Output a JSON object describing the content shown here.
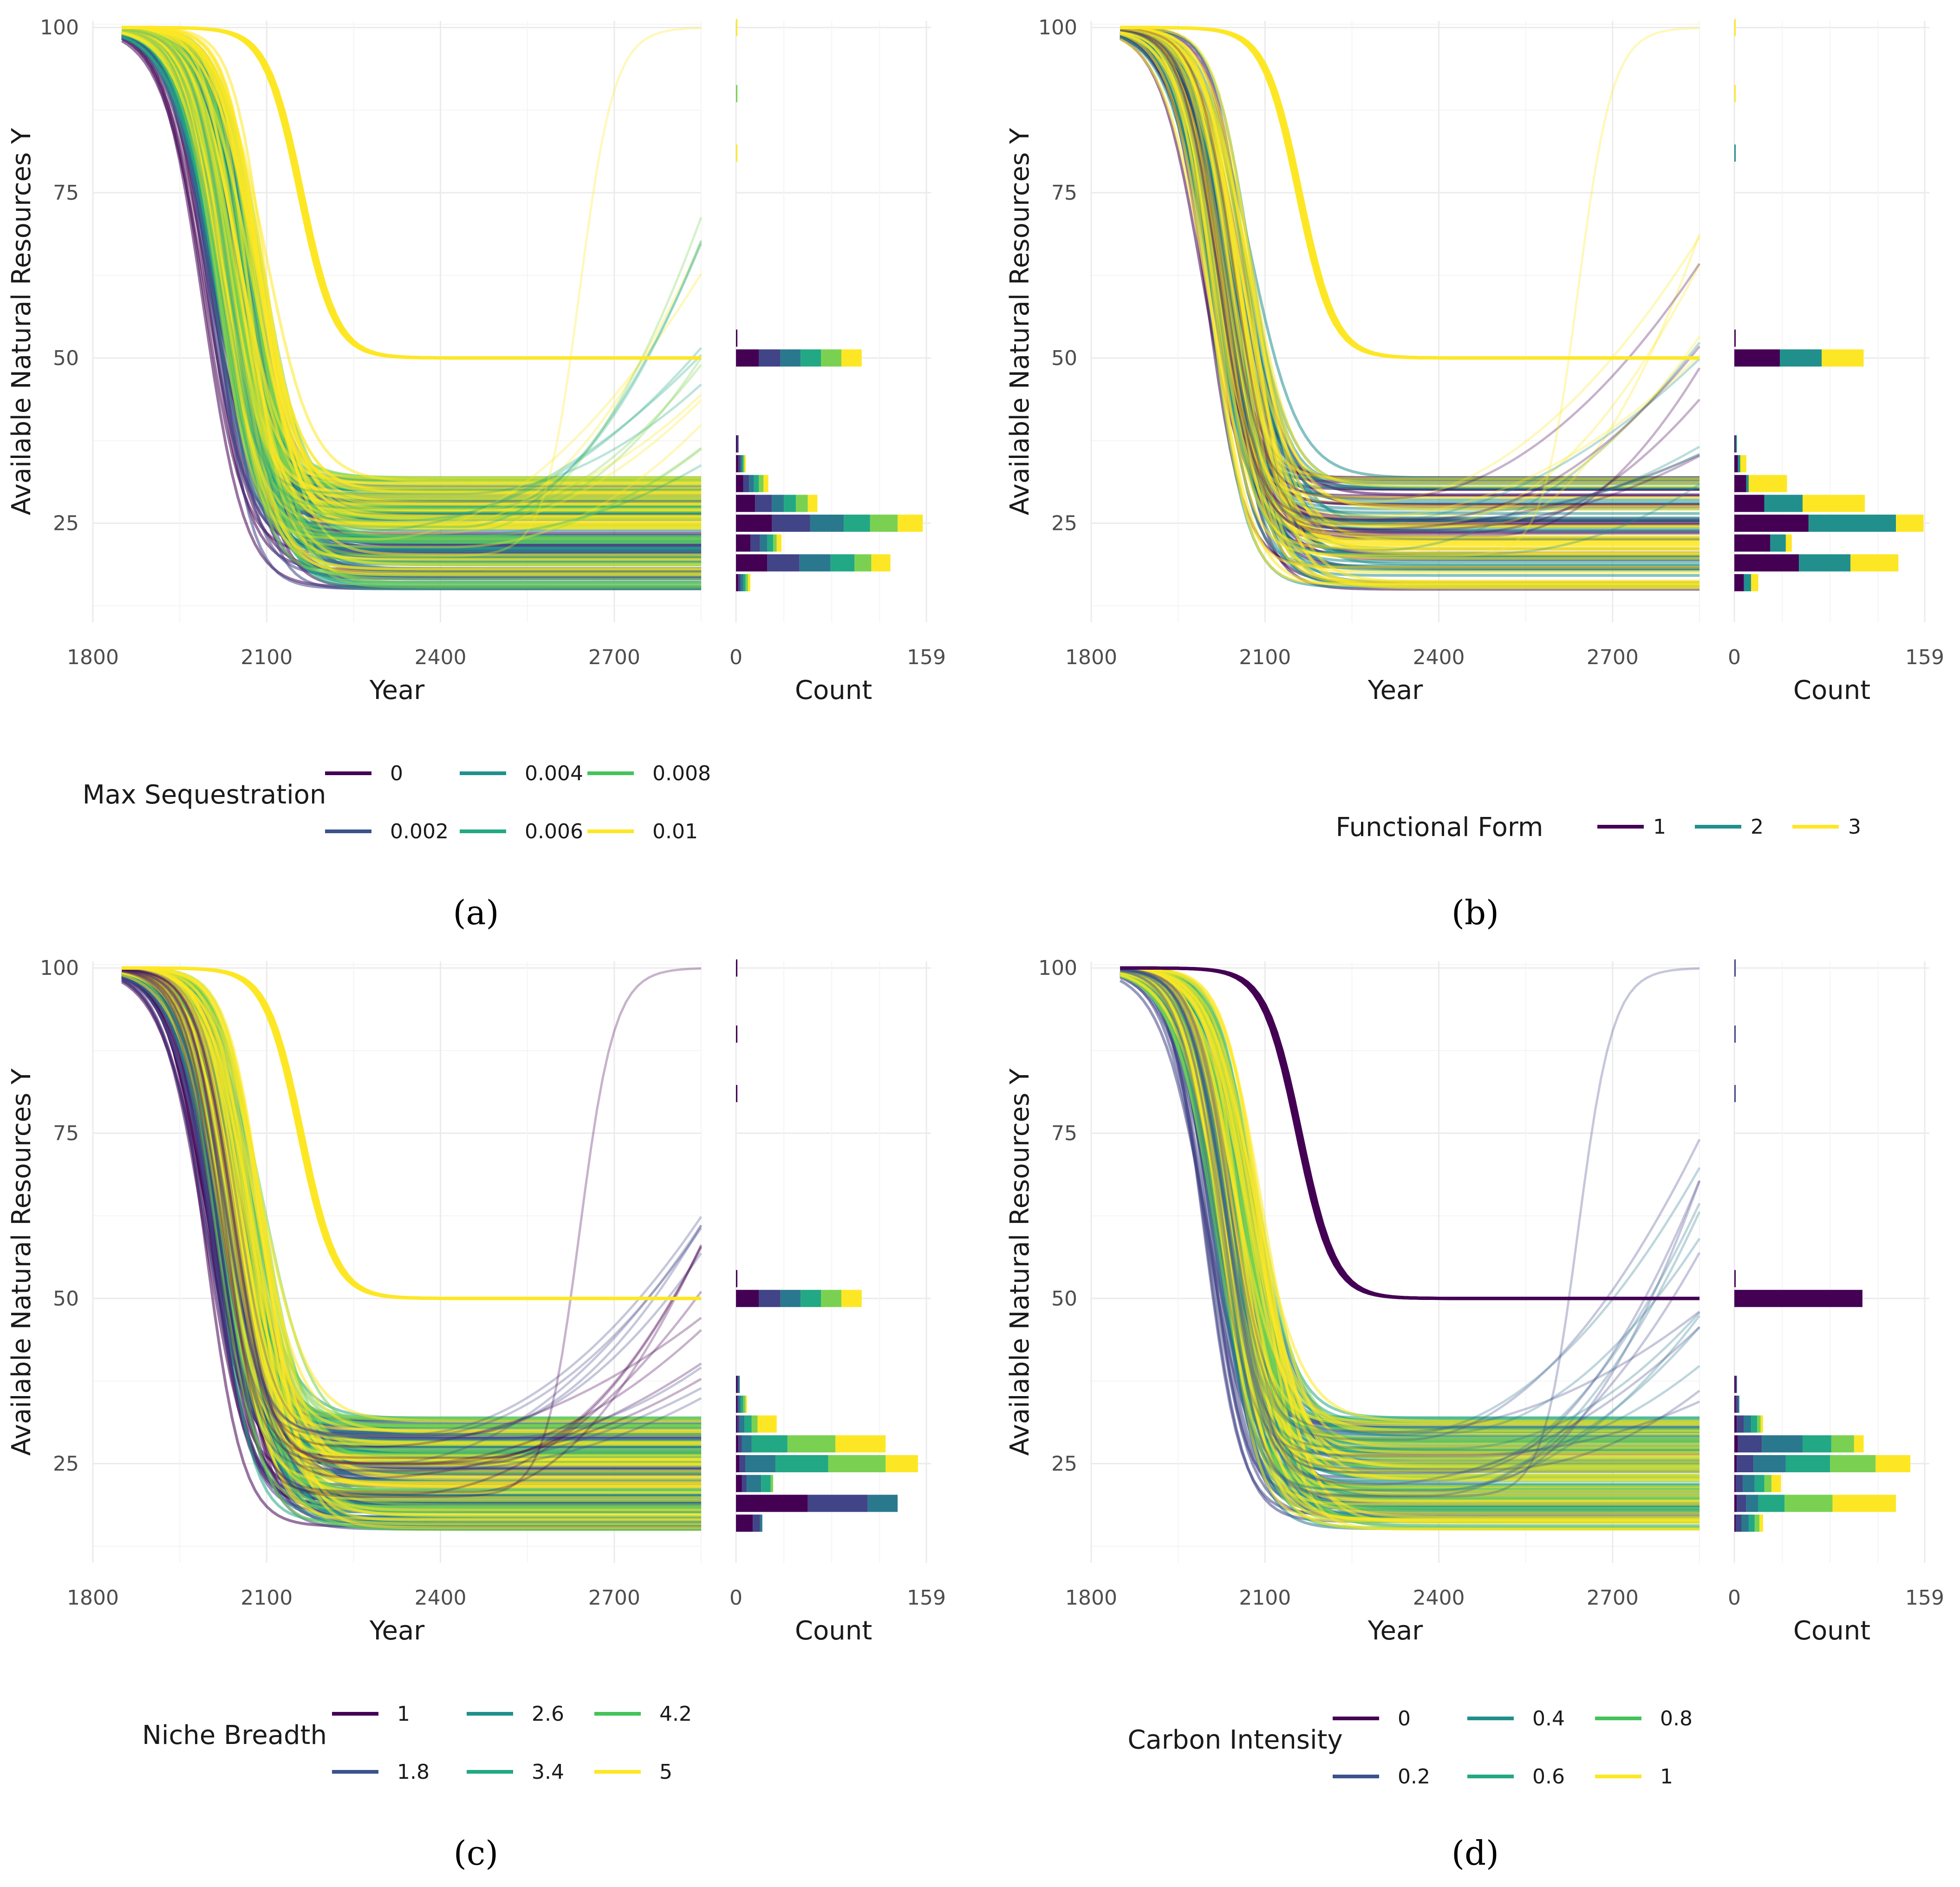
{
  "colors": {
    "viridis6": [
      "#440154",
      "#414487",
      "#2A788E",
      "#22A884",
      "#7AD151",
      "#FDE725"
    ],
    "viridis6_legend": [
      "#440154",
      "#3B528B",
      "#21908C",
      "#22A884",
      "#44C35A",
      "#FDE725"
    ],
    "viridis3": [
      "#440154",
      "#21908C",
      "#FDE725"
    ]
  },
  "chart_data": [
    {
      "panel": "a",
      "caption": "(a)",
      "type": "line",
      "xlabel": "Year",
      "ylabel": "Available Natural Resources Y",
      "xlim": [
        1800,
        2850
      ],
      "xticks": [
        "1800",
        "2100",
        "2400",
        "2700"
      ],
      "xtick_values": [
        1800,
        2100,
        2400,
        2700
      ],
      "ylim": [
        10,
        101
      ],
      "yticks": [
        "25",
        "50",
        "75",
        "100"
      ],
      "ytick_values": [
        25,
        50,
        75,
        100
      ],
      "hist_xlabel": "Count",
      "hist_xticks": [
        "0",
        "159"
      ],
      "hist_xtick_values": [
        0,
        159
      ],
      "legend_title": "Max Sequestration",
      "legend_layout": "3col",
      "legend_labels": [
        "0",
        "0.002",
        "0.004",
        "0.006",
        "0.008",
        "0.01"
      ],
      "palette": "viridis6",
      "highlight": 5,
      "stable_groups": [
        0,
        1,
        2,
        3,
        4,
        5
      ],
      "hist_bins": [
        {
          "y": 16,
          "counts": [
            2,
            2,
            2,
            2,
            2,
            2
          ]
        },
        {
          "y": 19,
          "counts": [
            26,
            27,
            26,
            20,
            14,
            16
          ]
        },
        {
          "y": 22,
          "counts": [
            12,
            8,
            6,
            5,
            3,
            4
          ]
        },
        {
          "y": 25,
          "counts": [
            30,
            32,
            28,
            22,
            23,
            21
          ]
        },
        {
          "y": 28,
          "counts": [
            16,
            14,
            10,
            10,
            10,
            8
          ]
        },
        {
          "y": 31,
          "counts": [
            6,
            5,
            4,
            4,
            4,
            4
          ]
        },
        {
          "y": 34,
          "counts": [
            2,
            2,
            1,
            1,
            1,
            1
          ]
        },
        {
          "y": 37,
          "counts": [
            1,
            1,
            0,
            0,
            0,
            0
          ]
        },
        {
          "y": 50,
          "counts": [
            19,
            18,
            17,
            17,
            17,
            17
          ]
        },
        {
          "y": 53,
          "counts": [
            1,
            0,
            0,
            0,
            0,
            0
          ]
        },
        {
          "y": 81,
          "counts": [
            0,
            0,
            0,
            0,
            0,
            1
          ]
        },
        {
          "y": 90,
          "counts": [
            0,
            0,
            0,
            0,
            1,
            0
          ]
        },
        {
          "y": 100,
          "counts": [
            0,
            0,
            0,
            0,
            0,
            1
          ]
        }
      ]
    },
    {
      "panel": "b",
      "caption": "(b)",
      "type": "line",
      "xlabel": "Year",
      "ylabel": "Available Natural Resources Y",
      "xlim": [
        1800,
        2850
      ],
      "xticks": [
        "1800",
        "2100",
        "2400",
        "2700"
      ],
      "xtick_values": [
        1800,
        2100,
        2400,
        2700
      ],
      "ylim": [
        10,
        101
      ],
      "yticks": [
        "25",
        "50",
        "75",
        "100"
      ],
      "ytick_values": [
        25,
        50,
        75,
        100
      ],
      "hist_xlabel": "Count",
      "hist_xticks": [
        "0",
        "159"
      ],
      "hist_xtick_values": [
        0,
        159
      ],
      "legend_title": "Functional Form",
      "legend_layout": "row",
      "legend_labels": [
        "1",
        "2",
        "3"
      ],
      "palette": "viridis3",
      "highlight": 2,
      "stable_groups": [
        0,
        1,
        2
      ],
      "hist_bins": [
        {
          "y": 16,
          "counts": [
            8,
            6,
            6
          ]
        },
        {
          "y": 19,
          "counts": [
            54,
            43,
            40
          ]
        },
        {
          "y": 22,
          "counts": [
            30,
            13,
            5
          ]
        },
        {
          "y": 25,
          "counts": [
            62,
            73,
            23
          ]
        },
        {
          "y": 28,
          "counts": [
            25,
            32,
            52
          ]
        },
        {
          "y": 31,
          "counts": [
            10,
            2,
            32
          ]
        },
        {
          "y": 34,
          "counts": [
            3,
            2,
            5
          ]
        },
        {
          "y": 37,
          "counts": [
            1,
            1,
            0
          ]
        },
        {
          "y": 50,
          "counts": [
            38,
            35,
            35
          ]
        },
        {
          "y": 53,
          "counts": [
            1,
            0,
            0
          ]
        },
        {
          "y": 81,
          "counts": [
            0,
            1,
            0
          ]
        },
        {
          "y": 90,
          "counts": [
            0,
            0,
            1
          ]
        },
        {
          "y": 100,
          "counts": [
            0,
            0,
            1
          ]
        }
      ]
    },
    {
      "panel": "c",
      "caption": "(c)",
      "type": "line",
      "xlabel": "Year",
      "ylabel": "Available Natural Resources Y",
      "xlim": [
        1800,
        2850
      ],
      "xticks": [
        "1800",
        "2100",
        "2400",
        "2700"
      ],
      "xtick_values": [
        1800,
        2100,
        2400,
        2700
      ],
      "ylim": [
        10,
        101
      ],
      "yticks": [
        "25",
        "50",
        "75",
        "100"
      ],
      "ytick_values": [
        25,
        50,
        75,
        100
      ],
      "hist_xlabel": "Count",
      "hist_xticks": [
        "0",
        "159"
      ],
      "hist_xtick_values": [
        0,
        159
      ],
      "legend_title": "Niche Breadth",
      "legend_layout": "3col",
      "legend_labels": [
        "1",
        "1.8",
        "2.6",
        "3.4",
        "4.2",
        "5"
      ],
      "palette": "viridis6",
      "highlight": 5,
      "stable_groups": [
        0,
        1,
        2,
        3,
        4,
        5
      ],
      "hist_bins": [
        {
          "y": 16,
          "counts": [
            14,
            6,
            2,
            0,
            0,
            0
          ]
        },
        {
          "y": 19,
          "counts": [
            60,
            50,
            25,
            0,
            0,
            0
          ]
        },
        {
          "y": 22,
          "counts": [
            5,
            4,
            12,
            8,
            2,
            0
          ]
        },
        {
          "y": 25,
          "counts": [
            3,
            5,
            25,
            44,
            48,
            27
          ]
        },
        {
          "y": 28,
          "counts": [
            2,
            3,
            8,
            30,
            40,
            42
          ]
        },
        {
          "y": 31,
          "counts": [
            1,
            2,
            4,
            6,
            5,
            16
          ]
        },
        {
          "y": 34,
          "counts": [
            1,
            1,
            2,
            2,
            2,
            1
          ]
        },
        {
          "y": 37,
          "counts": [
            1,
            1,
            1,
            0,
            0,
            0
          ]
        },
        {
          "y": 50,
          "counts": [
            19,
            18,
            17,
            17,
            17,
            17
          ]
        },
        {
          "y": 53,
          "counts": [
            1,
            0,
            0,
            0,
            0,
            0
          ]
        },
        {
          "y": 81,
          "counts": [
            1,
            0,
            0,
            0,
            0,
            0
          ]
        },
        {
          "y": 90,
          "counts": [
            1,
            0,
            0,
            0,
            0,
            0
          ]
        },
        {
          "y": 100,
          "counts": [
            1,
            0,
            0,
            0,
            0,
            0
          ]
        }
      ]
    },
    {
      "panel": "d",
      "caption": "(d)",
      "type": "line",
      "xlabel": "Year",
      "ylabel": "Available Natural Resources Y",
      "xlim": [
        1800,
        2850
      ],
      "xticks": [
        "1800",
        "2100",
        "2400",
        "2700"
      ],
      "xtick_values": [
        1800,
        2100,
        2400,
        2700
      ],
      "ylim": [
        10,
        101
      ],
      "yticks": [
        "25",
        "50",
        "75",
        "100"
      ],
      "ytick_values": [
        25,
        50,
        75,
        100
      ],
      "hist_xlabel": "Count",
      "hist_xticks": [
        "0",
        "159"
      ],
      "hist_xtick_values": [
        0,
        159
      ],
      "legend_title": "Carbon Intensity",
      "legend_layout": "3col",
      "legend_labels": [
        "0",
        "0.2",
        "0.4",
        "0.6",
        "0.8",
        "1"
      ],
      "palette": "viridis6",
      "highlight": 0,
      "stable_groups": [
        1,
        2,
        3,
        4,
        5
      ],
      "hist_bins": [
        {
          "y": 16,
          "counts": [
            1,
            5,
            6,
            5,
            4,
            3
          ]
        },
        {
          "y": 19,
          "counts": [
            2,
            8,
            10,
            22,
            40,
            53
          ]
        },
        {
          "y": 22,
          "counts": [
            1,
            6,
            10,
            8,
            6,
            8
          ]
        },
        {
          "y": 25,
          "counts": [
            2,
            14,
            27,
            37,
            38,
            29
          ]
        },
        {
          "y": 28,
          "counts": [
            3,
            20,
            34,
            24,
            19,
            8
          ]
        },
        {
          "y": 31,
          "counts": [
            2,
            6,
            6,
            5,
            3,
            2
          ]
        },
        {
          "y": 34,
          "counts": [
            1,
            2,
            1,
            0,
            0,
            0
          ]
        },
        {
          "y": 37,
          "counts": [
            1,
            1,
            0,
            0,
            0,
            0
          ]
        },
        {
          "y": 50,
          "counts": [
            107,
            0,
            0,
            0,
            0,
            0
          ]
        },
        {
          "y": 53,
          "counts": [
            1,
            0,
            0,
            0,
            0,
            0
          ]
        },
        {
          "y": 81,
          "counts": [
            0,
            1,
            0,
            0,
            0,
            0
          ]
        },
        {
          "y": 90,
          "counts": [
            0,
            1,
            0,
            0,
            0,
            0
          ]
        },
        {
          "y": 100,
          "counts": [
            0,
            1,
            0,
            0,
            0,
            0
          ]
        }
      ]
    }
  ]
}
